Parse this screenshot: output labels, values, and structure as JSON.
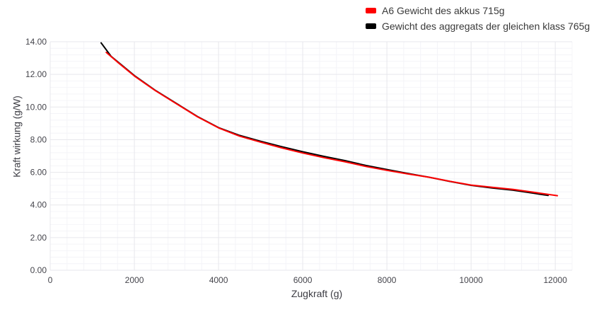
{
  "chart_data": {
    "type": "line",
    "title": "",
    "xlabel": "Zugkraft (g)",
    "ylabel": "Kraft wirkung (g/W)",
    "xlim": [
      0,
      12400
    ],
    "ylim": [
      0,
      14
    ],
    "grid": true,
    "x_minor_step": 400,
    "y_minor_step": 0.4,
    "legend_position": "top-right",
    "x_ticks": {
      "values": [
        0,
        2000,
        4000,
        6000,
        8000,
        10000,
        12000
      ],
      "labels": [
        "0",
        "2000",
        "4000",
        "6000",
        "8000",
        "10000",
        "12000"
      ]
    },
    "y_ticks": {
      "values": [
        0,
        2,
        4,
        6,
        8,
        10,
        12,
        14
      ],
      "labels": [
        "0.00",
        "2.00",
        "4.00",
        "6.00",
        "8.00",
        "10.00",
        "12.00",
        "14.00"
      ]
    },
    "series": [
      {
        "name": "A6 Gewicht des akkus 715g",
        "color": "#fe0000",
        "x": [
          1330,
          1600,
          2000,
          2500,
          3000,
          3500,
          4000,
          4500,
          5000,
          5500,
          6000,
          6500,
          7000,
          7500,
          8000,
          8500,
          9000,
          9500,
          10000,
          10500,
          11000,
          11500,
          12050
        ],
        "y": [
          13.35,
          12.75,
          11.9,
          11.0,
          10.2,
          9.4,
          8.72,
          8.22,
          7.85,
          7.5,
          7.18,
          6.9,
          6.65,
          6.36,
          6.12,
          5.9,
          5.7,
          5.45,
          5.22,
          5.08,
          4.95,
          4.77,
          4.57
        ]
      },
      {
        "name": "Gewicht des aggregats der gleichen klass 765g",
        "color": "#000000",
        "x": [
          1210,
          1450,
          1700,
          2000,
          2500,
          3000,
          3500,
          4000,
          4500,
          5000,
          5500,
          6000,
          6500,
          7000,
          7500,
          8000,
          8500,
          9000,
          9500,
          10000,
          10500,
          11000,
          11500,
          11830
        ],
        "y": [
          13.93,
          13.1,
          12.57,
          11.93,
          11.02,
          10.22,
          9.42,
          8.74,
          8.26,
          7.9,
          7.57,
          7.26,
          6.98,
          6.72,
          6.42,
          6.17,
          5.93,
          5.7,
          5.44,
          5.2,
          5.04,
          4.9,
          4.71,
          4.58
        ]
      }
    ]
  },
  "colors": {
    "background": "#ffffff",
    "grid_major": "#e7e7ec",
    "grid_minor": "#f4f4f8",
    "tick_text": "#45454c"
  }
}
